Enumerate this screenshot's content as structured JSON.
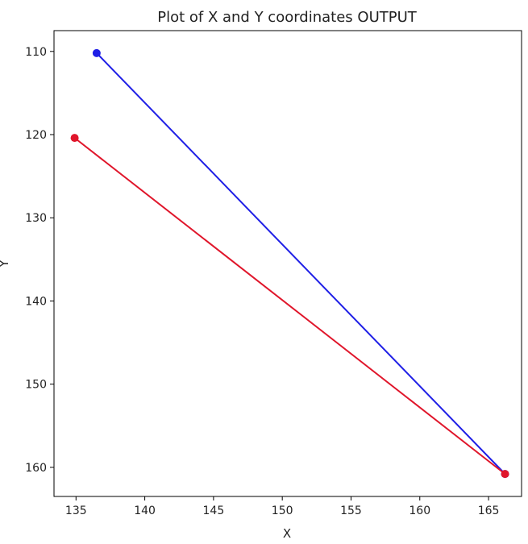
{
  "chart_data": {
    "type": "line",
    "title": "Plot of X and Y coordinates OUTPUT",
    "xlabel": "X",
    "ylabel": "Y",
    "xlim": [
      133.4,
      167.4
    ],
    "ylim": [
      163.5,
      107.5
    ],
    "y_inverted": true,
    "grid": false,
    "x_ticks": [
      135,
      140,
      145,
      150,
      155,
      160,
      165
    ],
    "y_ticks": [
      110,
      120,
      130,
      140,
      150,
      160
    ],
    "series": [
      {
        "color": "#1f1fe6",
        "x": [
          136.5,
          166.2
        ],
        "y": [
          110.2,
          160.8
        ]
      },
      {
        "color": "#e0162b",
        "x": [
          134.9,
          166.2
        ],
        "y": [
          120.4,
          160.8
        ]
      }
    ]
  }
}
